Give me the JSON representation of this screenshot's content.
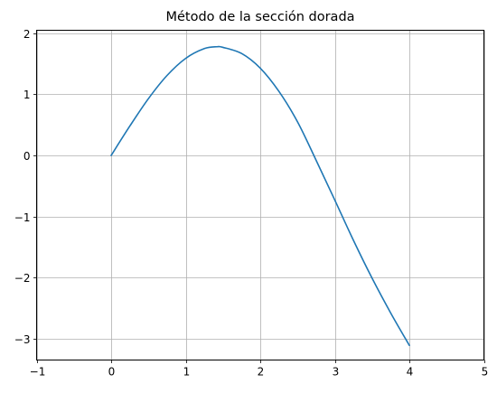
{
  "chart_data": {
    "type": "line",
    "title": "Método de la sección dorada",
    "xlabel": "",
    "ylabel": "",
    "xlim": [
      -1,
      5
    ],
    "ylim": [
      -3.35,
      2.05
    ],
    "grid": true,
    "legend": "none",
    "x_ticks": [
      -1,
      0,
      1,
      2,
      3,
      4,
      5
    ],
    "x_tick_labels": [
      "−1",
      "0",
      "1",
      "2",
      "3",
      "4",
      "5"
    ],
    "y_ticks": [
      -3,
      -2,
      -1,
      0,
      1,
      2
    ],
    "y_tick_labels": [
      "−3",
      "−2",
      "−1",
      "0",
      "1",
      "2"
    ],
    "series": [
      {
        "color": "#1f77b4",
        "x": [
          0,
          0.25,
          0.5,
          0.75,
          1.0,
          1.25,
          1.42,
          1.5,
          1.75,
          2.0,
          2.25,
          2.5,
          2.75,
          3.0,
          3.25,
          3.5,
          3.75,
          4.0
        ],
        "y": [
          0.0,
          0.48,
          0.93,
          1.31,
          1.59,
          1.75,
          1.78,
          1.77,
          1.67,
          1.43,
          1.05,
          0.55,
          -0.08,
          -0.73,
          -1.39,
          -2.01,
          -2.58,
          -3.11
        ]
      }
    ]
  }
}
